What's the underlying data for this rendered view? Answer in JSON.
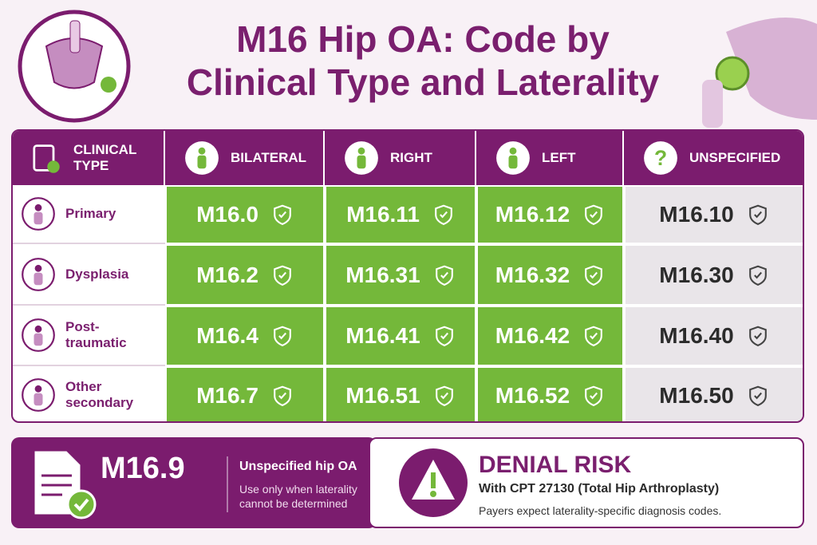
{
  "header": {
    "title": [
      "M16 Hip OA: Code by",
      "Clinical Type and Laterality"
    ]
  },
  "table": {
    "columns": [
      "CLINICAL TYPE",
      "BILATERAL",
      "RIGHT",
      "LEFT",
      "UNSPECIFIED"
    ],
    "rows": [
      [
        "Primary",
        "M16.0",
        "M16.11",
        "M16.12",
        "M16.10"
      ],
      [
        "Dysplasia",
        "M16.2",
        "M16.31",
        "M16.32",
        "M16.30"
      ],
      [
        "Post-traumatic",
        "M16.4",
        "M16.41",
        "M16.42",
        "M16.40"
      ],
      [
        "Other secondary",
        "M16.7",
        "M16.51",
        "M16.52",
        "M16.50"
      ]
    ]
  },
  "unspecified": {
    "code": "M16.9",
    "label": "Unspecified hip OA",
    "note": "Use only when laterality cannot be determined"
  },
  "risk": {
    "title": "DENIAL RISK",
    "subtitle": "With CPT 27130 (Total Hip Arthroplasty)",
    "note": "Payers expect laterality-specific diagnosis codes."
  }
}
